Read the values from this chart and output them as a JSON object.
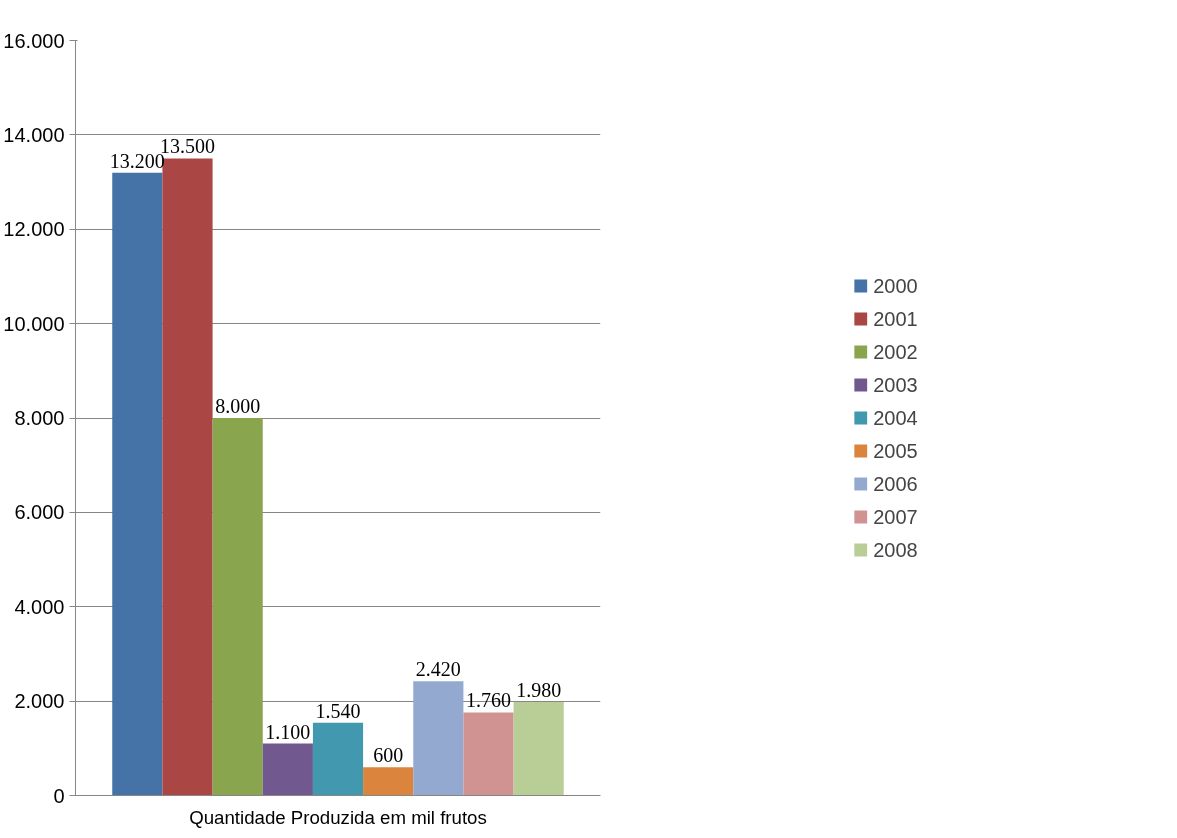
{
  "chart_data": {
    "type": "bar",
    "categories": [
      "Quantidade Produzida em mil frutos"
    ],
    "series": [
      {
        "name": "2000",
        "color": "#4572a7",
        "values": [
          13200
        ],
        "value_labels": [
          "13.200"
        ]
      },
      {
        "name": "2001",
        "color": "#aa4643",
        "values": [
          13500
        ],
        "value_labels": [
          "13.500"
        ]
      },
      {
        "name": "2002",
        "color": "#89a54e",
        "values": [
          8000
        ],
        "value_labels": [
          "8.000"
        ]
      },
      {
        "name": "2003",
        "color": "#71588f",
        "values": [
          1100
        ],
        "value_labels": [
          "1.100"
        ]
      },
      {
        "name": "2004",
        "color": "#4198af",
        "values": [
          1540
        ],
        "value_labels": [
          "1.540"
        ]
      },
      {
        "name": "2005",
        "color": "#db843d",
        "values": [
          600
        ],
        "value_labels": [
          "600"
        ]
      },
      {
        "name": "2006",
        "color": "#93a9cf",
        "values": [
          2420
        ],
        "value_labels": [
          "2.420"
        ]
      },
      {
        "name": "2007",
        "color": "#d19392",
        "values": [
          1760
        ],
        "value_labels": [
          "1.760"
        ]
      },
      {
        "name": "2008",
        "color": "#b9cd96",
        "values": [
          1980
        ],
        "value_labels": [
          "1.980"
        ]
      }
    ],
    "ylim": [
      0,
      16000
    ],
    "yticks": [
      0,
      {
        "value": 2000,
        "label": "2.000"
      },
      {
        "value": 4000,
        "label": "4.000"
      },
      {
        "value": 6000,
        "label": "6.000"
      },
      {
        "value": 8000,
        "label": "8.000"
      },
      {
        "value": 10000,
        "label": "10.000"
      },
      {
        "value": 12000,
        "label": "12.000"
      },
      {
        "value": 14000,
        "label": "14.000"
      },
      {
        "value": 16000,
        "label": "16.000"
      }
    ],
    "grid": "y",
    "legend": "right"
  }
}
